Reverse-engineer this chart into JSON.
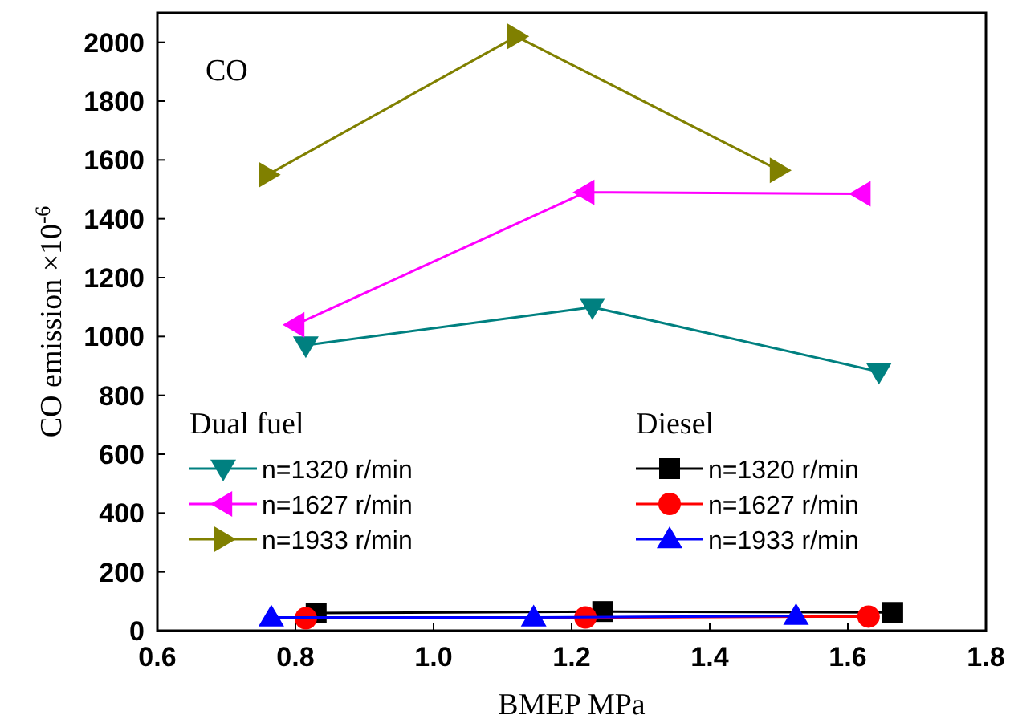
{
  "chart_data": {
    "type": "line",
    "xlabel": "BMEP MPa",
    "ylabel": "CO emission ×10$^{-6}$",
    "annotations": [
      "CO",
      "Dual fuel",
      "Diesel"
    ],
    "xlim": [
      0.6,
      1.8
    ],
    "xticks": [
      0.6,
      0.8,
      {
        "value": 1,
        "label": "1.0"
      },
      1.2,
      1.4,
      1.6,
      1.8
    ],
    "ylim": [
      0,
      2100
    ],
    "yticks": [
      0,
      200,
      400,
      600,
      800,
      1000,
      1200,
      1400,
      1600,
      1800,
      2000
    ],
    "grid": false,
    "legend": "bottom",
    "line_style": "solid",
    "series": [
      {
        "name": "n=1320 r/min",
        "color": "#008080",
        "marker": "triangle-down",
        "x": [
          0.815,
          1.23,
          1.645
        ],
        "values": [
          970,
          1100,
          880
        ]
      },
      {
        "name": "n=1627 r/min",
        "color": "#ff00ff",
        "marker": "triangle-left",
        "x": [
          0.8,
          1.22,
          1.62
        ],
        "values": [
          1040,
          1490,
          1485
        ]
      },
      {
        "name": "n=1933 r/min",
        "color": "#808000",
        "marker": "triangle-right",
        "x": [
          0.76,
          1.12,
          1.5
        ],
        "values": [
          1550,
          2020,
          1565
        ]
      },
      {
        "name": "n=1320 r/min",
        "color": "#000000",
        "marker": "square",
        "x": [
          0.83,
          1.245,
          1.665
        ],
        "values": [
          60,
          65,
          62
        ]
      },
      {
        "name": "n=1627 r/min",
        "color": "#ff0000",
        "marker": "circle",
        "x": [
          0.815,
          1.22,
          1.63
        ],
        "values": [
          42,
          45,
          48
        ]
      },
      {
        "name": "n=1933 r/min",
        "color": "#0000ff",
        "marker": "triangle",
        "x": [
          0.765,
          1.145,
          1.525
        ],
        "values": [
          45,
          45,
          50
        ]
      }
    ]
  }
}
